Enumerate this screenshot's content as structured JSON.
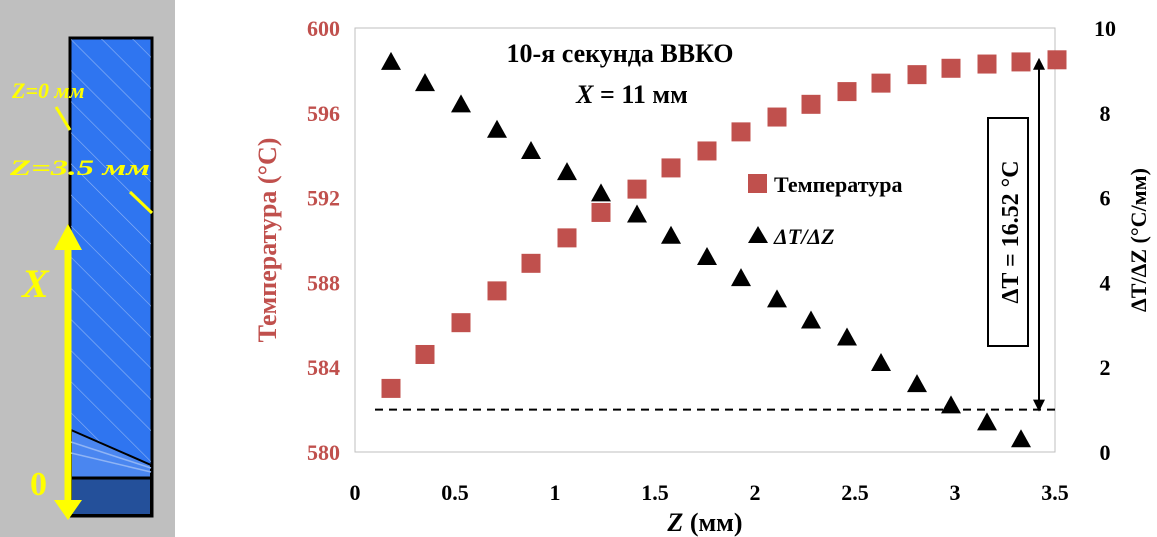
{
  "colors": {
    "temperature": "#c0504d",
    "gradient": "#000000",
    "panel_bg": "#bfbfbf",
    "part_fill": "#2f75f0",
    "part_base": "#24509a",
    "annotation_yellow": "#ffff00"
  },
  "schematic": {
    "label_z0": "Z=0 мм",
    "label_z35": "Z=3.5 мм",
    "label_x": "X",
    "label_zero": "0"
  },
  "chart_data": {
    "type": "scatter",
    "title_line1": "10-я секунда ВВКО",
    "title_line2": "X = 11 мм",
    "xlabel": "Z (мм)",
    "ylabel_left": "Температура (°C)",
    "ylabel_right": "ΔT/ΔZ (°C/мм)",
    "xlim": [
      0,
      3.5
    ],
    "ylim_left": [
      580,
      600
    ],
    "ylim_right": [
      0,
      10
    ],
    "xticks": [
      "0",
      "0.5",
      "1",
      "1.5",
      "2",
      "2.5",
      "3",
      "3.5"
    ],
    "yticks_left": [
      "580",
      "584",
      "588",
      "592",
      "596",
      "600"
    ],
    "yticks_right": [
      "0",
      "2",
      "4",
      "6",
      "8",
      "10"
    ],
    "grid": false,
    "legend_position": "right-center",
    "series": [
      {
        "name": "Температура",
        "axis": "left",
        "marker": "square",
        "x": [
          0.18,
          0.35,
          0.53,
          0.71,
          0.88,
          1.06,
          1.23,
          1.41,
          1.58,
          1.76,
          1.93,
          2.11,
          2.28,
          2.46,
          2.63,
          2.81,
          2.98,
          3.16,
          3.33,
          3.51
        ],
        "y": [
          583.0,
          584.6,
          586.1,
          587.6,
          588.9,
          590.1,
          591.3,
          592.4,
          593.4,
          594.2,
          595.1,
          595.8,
          596.4,
          597.0,
          597.4,
          597.8,
          598.1,
          598.3,
          598.4,
          598.5
        ]
      },
      {
        "name": "ΔT/ΔZ",
        "axis": "right",
        "marker": "triangle",
        "x": [
          0.18,
          0.35,
          0.53,
          0.71,
          0.88,
          1.06,
          1.23,
          1.41,
          1.58,
          1.76,
          1.93,
          2.11,
          2.28,
          2.46,
          2.63,
          2.81,
          2.98,
          3.16,
          3.33
        ],
        "y": [
          9.2,
          8.7,
          8.2,
          7.6,
          7.1,
          6.6,
          6.1,
          5.6,
          5.1,
          4.6,
          4.1,
          3.6,
          3.1,
          2.7,
          2.1,
          1.6,
          1.1,
          0.7,
          0.3
        ]
      }
    ],
    "annotation": {
      "text": "ΔT = 16.52 °C",
      "baseline_temperature": 582,
      "top_temperature": 598.5,
      "x": 3.42
    }
  }
}
